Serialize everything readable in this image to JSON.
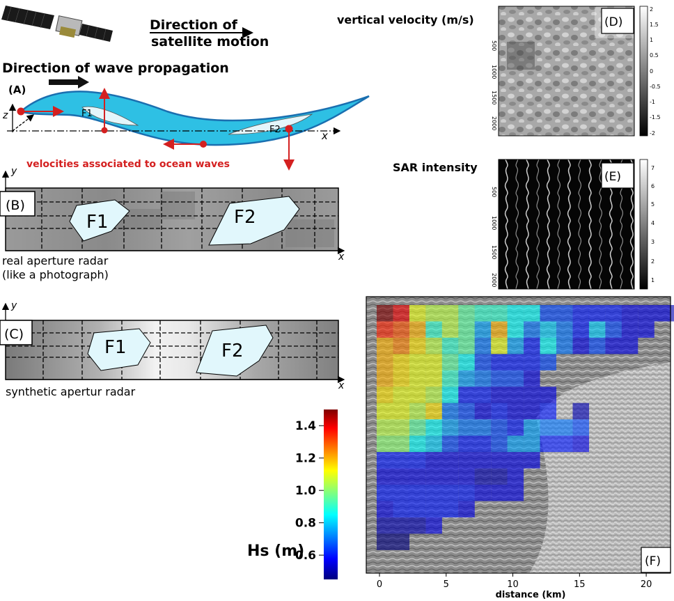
{
  "panel_a": {
    "letter": "(A)",
    "satellite_motion": [
      "Direction of",
      "satellite motion"
    ],
    "wave_propagation": "Direction of wave propagation",
    "f1": "F1",
    "f2": "F2",
    "axis_z": "z",
    "axis_x": "x",
    "velocities": "velocities associated to ocean waves"
  },
  "panel_b": {
    "letter": "(B)",
    "axis_y": "y",
    "axis_x": "x",
    "f1": "F1",
    "f2": "F2",
    "caption": [
      "real aperture radar",
      "(like a photograph)"
    ]
  },
  "panel_c": {
    "letter": "(C)",
    "axis_y": "y",
    "axis_x": "x",
    "f1": "F1",
    "f2": "F2",
    "caption": "synthetic apertur radar"
  },
  "panel_d": {
    "letter": "(D)",
    "title": "vertical velocity (m/s)",
    "y_ticks": [
      "500",
      "1000",
      "1500",
      "2000"
    ],
    "colorbar_ticks": [
      "2",
      "1.5",
      "1",
      "0.5",
      "0",
      "-0.5",
      "-1",
      "-1.5",
      "-2"
    ]
  },
  "panel_e": {
    "letter": "(E)",
    "title": "SAR intensity",
    "y_ticks": [
      "500",
      "1000",
      "1500",
      "2000"
    ],
    "colorbar_ticks": [
      "7",
      "6",
      "5",
      "4",
      "3",
      "2",
      "1"
    ]
  },
  "chart_data": {
    "type": "heatmap",
    "letter": "(F)",
    "xlabel": "distance (km)",
    "x_ticks": [
      "0",
      "5",
      "10",
      "15",
      "20"
    ],
    "xlim": [
      0,
      22
    ],
    "cell_size_km": 1.2,
    "colorbar_label": "Hs (m)",
    "colorbar_ticks": [
      "1.4",
      "1.2",
      "1.0",
      "0.8",
      "0.6"
    ],
    "colorbar_range": [
      0.45,
      1.5
    ],
    "rows": [
      [
        1.5,
        1.4,
        1.1,
        1.05,
        1.05,
        0.95,
        0.9,
        0.9,
        0.85,
        0.85,
        0.65,
        0.65,
        0.6,
        0.6,
        0.6,
        0.55,
        0.55,
        0.55,
        0.5
      ],
      [
        1.35,
        1.3,
        1.2,
        0.9,
        1.05,
        0.95,
        0.75,
        1.2,
        0.85,
        0.7,
        0.8,
        0.7,
        0.6,
        0.8,
        0.65,
        0.55,
        0.55,
        null,
        null
      ],
      [
        1.2,
        1.25,
        1.15,
        1.05,
        0.9,
        0.95,
        0.7,
        1.1,
        0.75,
        0.6,
        0.85,
        0.7,
        0.55,
        0.65,
        0.55,
        0.55,
        null,
        null,
        null
      ],
      [
        1.2,
        1.15,
        1.1,
        1.1,
        0.95,
        0.85,
        0.65,
        0.6,
        0.6,
        0.6,
        0.65,
        null,
        null,
        null,
        null,
        null,
        null,
        null,
        null
      ],
      [
        1.2,
        1.15,
        1.1,
        1.1,
        0.9,
        0.75,
        0.7,
        0.65,
        0.65,
        0.55,
        null,
        null,
        null,
        null,
        null,
        null,
        null,
        null,
        null
      ],
      [
        1.15,
        1.1,
        1.1,
        1.05,
        0.85,
        0.6,
        0.6,
        0.55,
        0.55,
        0.55,
        0.55,
        null,
        null,
        null,
        null,
        null,
        null,
        null,
        null
      ],
      [
        1.1,
        1.1,
        1.05,
        1.15,
        0.7,
        0.65,
        0.55,
        0.6,
        0.55,
        0.55,
        0.6,
        null,
        0.5,
        null,
        null,
        null,
        null,
        null,
        null
      ],
      [
        1.05,
        1.05,
        0.95,
        0.85,
        0.75,
        0.7,
        0.7,
        0.65,
        0.6,
        0.75,
        0.7,
        0.7,
        0.65,
        null,
        null,
        null,
        null,
        null,
        null
      ],
      [
        1.0,
        1.0,
        0.85,
        0.8,
        0.65,
        0.6,
        0.6,
        0.65,
        0.75,
        0.75,
        0.6,
        0.6,
        0.55,
        null,
        null,
        null,
        null,
        null,
        null
      ],
      [
        0.6,
        0.6,
        0.6,
        0.55,
        0.55,
        0.55,
        0.55,
        0.55,
        0.55,
        0.55,
        null,
        null,
        null,
        null,
        null,
        null,
        null,
        null,
        null
      ],
      [
        0.55,
        0.55,
        0.55,
        0.55,
        0.55,
        0.55,
        0.5,
        0.5,
        0.55,
        null,
        null,
        null,
        null,
        null,
        null,
        null,
        null,
        null,
        null
      ],
      [
        0.6,
        0.6,
        0.6,
        0.6,
        0.6,
        0.6,
        0.55,
        0.55,
        0.55,
        null,
        null,
        null,
        null,
        null,
        null,
        null,
        null,
        null,
        null
      ],
      [
        0.55,
        0.6,
        0.6,
        0.6,
        0.6,
        0.55,
        null,
        null,
        null,
        null,
        null,
        null,
        null,
        null,
        null,
        null,
        null,
        null,
        null
      ],
      [
        0.5,
        0.5,
        0.5,
        0.55,
        null,
        null,
        null,
        null,
        null,
        null,
        null,
        null,
        null,
        null,
        null,
        null,
        null,
        null,
        null
      ],
      [
        0.45,
        0.45,
        null,
        null,
        null,
        null,
        null,
        null,
        null,
        null,
        null,
        null,
        null,
        null,
        null,
        null,
        null,
        null,
        null
      ]
    ]
  }
}
